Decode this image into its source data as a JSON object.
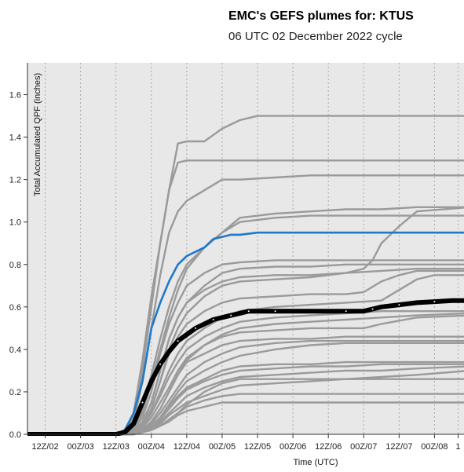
{
  "chart_data": {
    "type": "line",
    "title": "EMC's GEFS plumes for: KTUS",
    "subtitle": "06 UTC 02 December 2022 cycle",
    "xlabel": "Time (UTC)",
    "ylabel": "Total Accumulated QPF (inches)",
    "ylim": [
      0,
      1.75
    ],
    "y_ticks": [
      0.0,
      0.2,
      0.4,
      0.6,
      0.8,
      1.0,
      1.2,
      1.4,
      1.6
    ],
    "x_ticks": [
      {
        "label": "12Z/02",
        "t": 6
      },
      {
        "label": "00Z/03",
        "t": 18
      },
      {
        "label": "12Z/03",
        "t": 30
      },
      {
        "label": "00Z/04",
        "t": 42
      },
      {
        "label": "12Z/04",
        "t": 54
      },
      {
        "label": "00Z/05",
        "t": 66
      },
      {
        "label": "12Z/05",
        "t": 78
      },
      {
        "label": "00Z/06",
        "t": 90
      },
      {
        "label": "12Z/06",
        "t": 102
      },
      {
        "label": "00Z/07",
        "t": 114
      },
      {
        "label": "12Z/07",
        "t": 126
      },
      {
        "label": "00Z/08",
        "t": 138
      },
      {
        "label": "1",
        "t": 146
      }
    ],
    "grid": true,
    "colors": {
      "background": "#e8e8e8",
      "members": "#9a9a9a",
      "highlight": "#1f78c8",
      "mean": "#000000",
      "grid": "#aaaaaa"
    },
    "members": [
      {
        "t": [
          0,
          30,
          33,
          36,
          39,
          42,
          45,
          48,
          51,
          54,
          60,
          66,
          72,
          78,
          84,
          150
        ],
        "v": [
          0,
          0,
          0.01,
          0.08,
          0.3,
          0.6,
          0.9,
          1.15,
          1.37,
          1.38,
          1.38,
          1.44,
          1.48,
          1.5,
          1.5,
          1.5
        ]
      },
      {
        "t": [
          0,
          30,
          33,
          36,
          39,
          42,
          45,
          48,
          51,
          54,
          60,
          66,
          78,
          150
        ],
        "v": [
          0,
          0,
          0.02,
          0.1,
          0.35,
          0.65,
          0.9,
          1.15,
          1.28,
          1.29,
          1.29,
          1.29,
          1.29,
          1.29
        ]
      },
      {
        "t": [
          0,
          30,
          33,
          36,
          39,
          42,
          45,
          48,
          51,
          54,
          60,
          66,
          72,
          84,
          96,
          108,
          120,
          132,
          144,
          150
        ],
        "v": [
          0,
          0,
          0.01,
          0.06,
          0.25,
          0.5,
          0.75,
          0.95,
          1.05,
          1.1,
          1.15,
          1.2,
          1.2,
          1.21,
          1.22,
          1.22,
          1.22,
          1.22,
          1.22,
          1.22
        ]
      },
      {
        "t": [
          0,
          33,
          36,
          39,
          42,
          45,
          48,
          51,
          54,
          60,
          66,
          72,
          84,
          96,
          108,
          120,
          132,
          150
        ],
        "v": [
          0,
          0,
          0.03,
          0.12,
          0.28,
          0.45,
          0.6,
          0.72,
          0.8,
          0.88,
          0.95,
          1.02,
          1.04,
          1.05,
          1.06,
          1.06,
          1.07,
          1.07
        ]
      },
      {
        "t": [
          0,
          33,
          36,
          39,
          42,
          45,
          48,
          51,
          54,
          60,
          66,
          72,
          84,
          96,
          150
        ],
        "v": [
          0,
          0,
          0.02,
          0.1,
          0.25,
          0.4,
          0.55,
          0.68,
          0.78,
          0.88,
          0.95,
          1.0,
          1.02,
          1.03,
          1.03
        ]
      },
      {
        "t": [
          0,
          33,
          36,
          39,
          42,
          45,
          48,
          51,
          54,
          60,
          66,
          72,
          84,
          96,
          108,
          114,
          117,
          120,
          126,
          132,
          150
        ],
        "v": [
          0,
          0,
          0.01,
          0.06,
          0.15,
          0.3,
          0.45,
          0.55,
          0.62,
          0.68,
          0.72,
          0.74,
          0.75,
          0.75,
          0.76,
          0.78,
          0.82,
          0.9,
          0.98,
          1.05,
          1.07
        ]
      },
      {
        "t": [
          0,
          33,
          36,
          39,
          42,
          45,
          48,
          51,
          54,
          60,
          66,
          72,
          84,
          96,
          108,
          120,
          132,
          150
        ],
        "v": [
          0,
          0,
          0.02,
          0.08,
          0.2,
          0.38,
          0.52,
          0.62,
          0.7,
          0.76,
          0.8,
          0.81,
          0.82,
          0.82,
          0.82,
          0.82,
          0.82,
          0.82
        ]
      },
      {
        "t": [
          0,
          33,
          36,
          39,
          42,
          45,
          48,
          51,
          54,
          60,
          66,
          72,
          84,
          96,
          108,
          120,
          132,
          150
        ],
        "v": [
          0,
          0,
          0.01,
          0.05,
          0.15,
          0.3,
          0.45,
          0.55,
          0.62,
          0.7,
          0.76,
          0.78,
          0.79,
          0.79,
          0.8,
          0.8,
          0.8,
          0.8
        ]
      },
      {
        "t": [
          0,
          33,
          36,
          39,
          42,
          45,
          48,
          51,
          54,
          60,
          66,
          72,
          84,
          96,
          108,
          120,
          132,
          150
        ],
        "v": [
          0,
          0,
          0.01,
          0.04,
          0.12,
          0.25,
          0.4,
          0.5,
          0.57,
          0.65,
          0.7,
          0.72,
          0.73,
          0.74,
          0.76,
          0.77,
          0.78,
          0.78
        ]
      },
      {
        "t": [
          0,
          33,
          36,
          39,
          42,
          45,
          48,
          51,
          54,
          60,
          66,
          72,
          84,
          96,
          108,
          114,
          120,
          126,
          132,
          150
        ],
        "v": [
          0,
          0,
          0.01,
          0.04,
          0.12,
          0.25,
          0.38,
          0.46,
          0.52,
          0.58,
          0.62,
          0.64,
          0.65,
          0.66,
          0.66,
          0.67,
          0.72,
          0.75,
          0.77,
          0.77
        ]
      },
      {
        "t": [
          0,
          33,
          36,
          39,
          42,
          45,
          48,
          51,
          54,
          60,
          66,
          72,
          84,
          96,
          108,
          120,
          126,
          132,
          138,
          150
        ],
        "v": [
          0,
          0,
          0.01,
          0.03,
          0.1,
          0.2,
          0.3,
          0.38,
          0.44,
          0.5,
          0.55,
          0.58,
          0.6,
          0.61,
          0.62,
          0.63,
          0.68,
          0.73,
          0.75,
          0.75
        ]
      },
      {
        "t": [
          0,
          33,
          36,
          39,
          42,
          45,
          48,
          51,
          54,
          60,
          66,
          72,
          84,
          96,
          108,
          120,
          132,
          150
        ],
        "v": [
          0,
          0,
          0.01,
          0.03,
          0.1,
          0.18,
          0.27,
          0.34,
          0.4,
          0.46,
          0.5,
          0.53,
          0.55,
          0.56,
          0.57,
          0.58,
          0.58,
          0.58
        ]
      },
      {
        "t": [
          0,
          33,
          36,
          39,
          42,
          45,
          48,
          51,
          54,
          60,
          66,
          72,
          84,
          96,
          108,
          120,
          132,
          150
        ],
        "v": [
          0,
          0,
          0.01,
          0.03,
          0.08,
          0.15,
          0.22,
          0.3,
          0.36,
          0.42,
          0.47,
          0.5,
          0.52,
          0.53,
          0.54,
          0.55,
          0.56,
          0.57
        ]
      },
      {
        "t": [
          0,
          33,
          36,
          39,
          42,
          45,
          48,
          51,
          54,
          60,
          66,
          72,
          84,
          96,
          108,
          114,
          120,
          132,
          150
        ],
        "v": [
          0,
          0,
          0,
          0.02,
          0.06,
          0.12,
          0.2,
          0.28,
          0.35,
          0.42,
          0.46,
          0.48,
          0.49,
          0.5,
          0.5,
          0.5,
          0.52,
          0.55,
          0.56
        ]
      },
      {
        "t": [
          0,
          33,
          36,
          39,
          42,
          45,
          48,
          51,
          54,
          60,
          66,
          72,
          84,
          96,
          108,
          120,
          132,
          150
        ],
        "v": [
          0,
          0,
          0,
          0.02,
          0.06,
          0.12,
          0.2,
          0.28,
          0.34,
          0.38,
          0.42,
          0.44,
          0.45,
          0.45,
          0.46,
          0.46,
          0.46,
          0.46
        ]
      },
      {
        "t": [
          0,
          33,
          36,
          39,
          42,
          45,
          48,
          51,
          54,
          60,
          66,
          72,
          84,
          96,
          108,
          120,
          132,
          150
        ],
        "v": [
          0,
          0,
          0,
          0.02,
          0.05,
          0.1,
          0.16,
          0.22,
          0.28,
          0.34,
          0.38,
          0.41,
          0.43,
          0.44,
          0.44,
          0.44,
          0.44,
          0.44
        ]
      },
      {
        "t": [
          0,
          33,
          36,
          39,
          42,
          45,
          48,
          51,
          54,
          60,
          66,
          72,
          84,
          96,
          108,
          120,
          132,
          150
        ],
        "v": [
          0,
          0,
          0,
          0.01,
          0.04,
          0.08,
          0.14,
          0.2,
          0.25,
          0.3,
          0.34,
          0.37,
          0.4,
          0.42,
          0.43,
          0.43,
          0.43,
          0.43
        ]
      },
      {
        "t": [
          0,
          33,
          36,
          39,
          42,
          45,
          48,
          51,
          54,
          60,
          66,
          72,
          84,
          96,
          108,
          120,
          132,
          150
        ],
        "v": [
          0,
          0,
          0,
          0.01,
          0.04,
          0.08,
          0.13,
          0.18,
          0.22,
          0.26,
          0.3,
          0.32,
          0.33,
          0.33,
          0.34,
          0.34,
          0.34,
          0.34
        ]
      },
      {
        "t": [
          0,
          33,
          36,
          39,
          42,
          45,
          48,
          51,
          54,
          60,
          66,
          72,
          84,
          96,
          108,
          120,
          132,
          150
        ],
        "v": [
          0,
          0,
          0,
          0.01,
          0.03,
          0.07,
          0.12,
          0.17,
          0.21,
          0.25,
          0.28,
          0.3,
          0.31,
          0.32,
          0.32,
          0.33,
          0.33,
          0.33
        ]
      },
      {
        "t": [
          0,
          33,
          36,
          39,
          42,
          45,
          48,
          51,
          54,
          60,
          66,
          72,
          84,
          96,
          108,
          120,
          132,
          150
        ],
        "v": [
          0,
          0,
          0,
          0.01,
          0.03,
          0.06,
          0.1,
          0.14,
          0.18,
          0.22,
          0.25,
          0.27,
          0.28,
          0.29,
          0.3,
          0.3,
          0.31,
          0.32
        ]
      },
      {
        "t": [
          0,
          33,
          36,
          39,
          42,
          45,
          48,
          51,
          54,
          60,
          66,
          72,
          84,
          96,
          108,
          120,
          132,
          150
        ],
        "v": [
          0,
          0,
          0,
          0.01,
          0.03,
          0.05,
          0.09,
          0.12,
          0.15,
          0.18,
          0.21,
          0.23,
          0.24,
          0.25,
          0.26,
          0.27,
          0.28,
          0.3
        ]
      },
      {
        "t": [
          0,
          33,
          36,
          39,
          42,
          45,
          48,
          51,
          54,
          60,
          66,
          72,
          84,
          96,
          108,
          120,
          132,
          150
        ],
        "v": [
          0,
          0,
          0,
          0.01,
          0.02,
          0.04,
          0.07,
          0.1,
          0.13,
          0.16,
          0.18,
          0.19,
          0.19,
          0.19,
          0.19,
          0.19,
          0.19,
          0.19
        ]
      },
      {
        "t": [
          0,
          33,
          36,
          39,
          42,
          45,
          48,
          51,
          54,
          60,
          66,
          72,
          84,
          96,
          108,
          120,
          132,
          150
        ],
        "v": [
          0,
          0,
          0,
          0.01,
          0.02,
          0.04,
          0.06,
          0.09,
          0.11,
          0.13,
          0.15,
          0.15,
          0.15,
          0.15,
          0.15,
          0.15,
          0.15,
          0.15
        ]
      },
      {
        "t": [
          0,
          33,
          36,
          39,
          42,
          45,
          48,
          51,
          54,
          60,
          66,
          72,
          84,
          96,
          108,
          120,
          132,
          150
        ],
        "v": [
          0,
          0,
          0,
          0.01,
          0.02,
          0.04,
          0.06,
          0.1,
          0.14,
          0.2,
          0.24,
          0.26,
          0.26,
          0.26,
          0.26,
          0.26,
          0.26,
          0.26
        ]
      }
    ],
    "highlight_member": {
      "t": [
        0,
        30,
        33,
        36,
        39,
        42,
        45,
        48,
        51,
        54,
        57,
        60,
        63,
        66,
        69,
        72,
        78,
        84,
        96,
        108,
        120,
        132,
        150
      ],
      "v": [
        0,
        0,
        0.02,
        0.1,
        0.25,
        0.5,
        0.62,
        0.72,
        0.8,
        0.84,
        0.86,
        0.88,
        0.92,
        0.93,
        0.94,
        0.94,
        0.95,
        0.95,
        0.95,
        0.95,
        0.95,
        0.95,
        0.95
      ]
    },
    "ensemble_mean": {
      "t": [
        0,
        30,
        33,
        36,
        39,
        42,
        45,
        48,
        51,
        54,
        57,
        60,
        63,
        66,
        69,
        72,
        75,
        78,
        84,
        96,
        108,
        114,
        117,
        120,
        126,
        132,
        138,
        144,
        150
      ],
      "v": [
        0,
        0,
        0.01,
        0.05,
        0.15,
        0.25,
        0.33,
        0.39,
        0.44,
        0.47,
        0.5,
        0.52,
        0.54,
        0.55,
        0.56,
        0.57,
        0.58,
        0.58,
        0.58,
        0.58,
        0.58,
        0.58,
        0.59,
        0.6,
        0.61,
        0.62,
        0.625,
        0.63,
        0.63
      ]
    }
  }
}
